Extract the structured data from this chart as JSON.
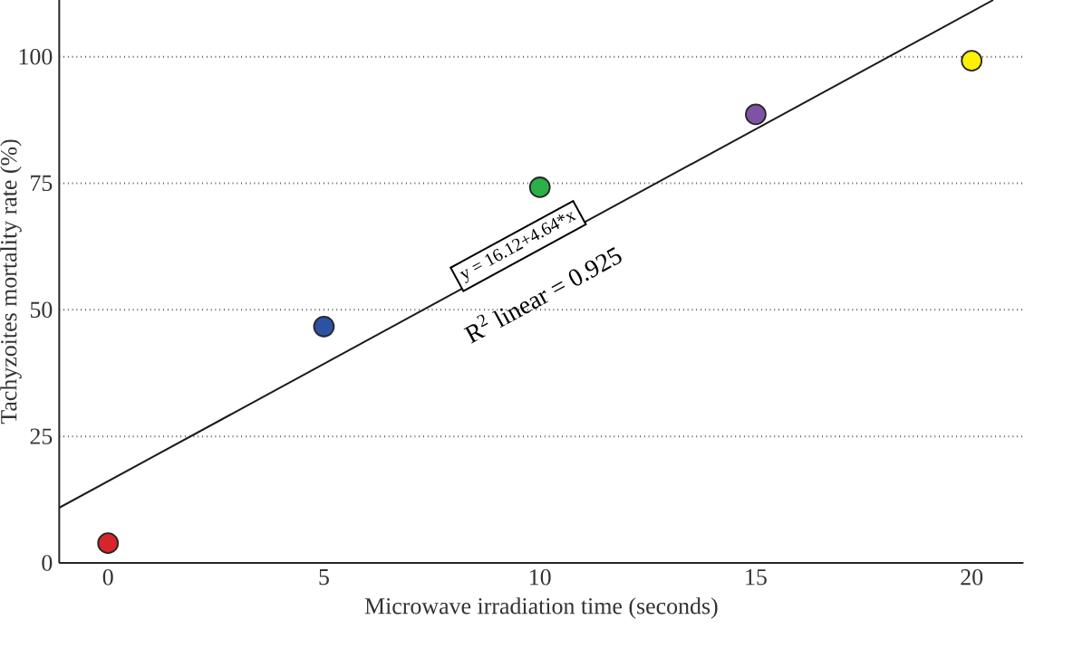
{
  "chart_data": {
    "type": "scatter",
    "xlabel": "Microwave irradiation time (seconds)",
    "ylabel": "Tachyzoites mortality rate (%)",
    "x": [
      0,
      5,
      10,
      15,
      20
    ],
    "series": [
      {
        "values": [
          3.9,
          46.7,
          74.2,
          88.6,
          99.2
        ],
        "colors": [
          "#d7262b",
          "#2b52a3",
          "#2cb04a",
          "#7f52a3",
          "#fff200"
        ],
        "marker": "circle"
      },
      {
        "type": "line",
        "x": [
          -1.13,
          20.5
        ],
        "values": [
          10.9,
          111.2
        ],
        "color": "#1a1a1a",
        "marker": "none",
        "line_style": "solid"
      }
    ],
    "annotations": [
      "y = 16.12+4.64*x",
      "R$^{2}$ linear = 0.925"
    ],
    "xlim": [
      -1.13,
      21.2
    ],
    "ylim": [
      0,
      111.2
    ],
    "xticks": [
      0,
      5,
      10,
      15,
      20
    ],
    "yticks": [
      0,
      25,
      50,
      75,
      100
    ],
    "grid": "y"
  }
}
